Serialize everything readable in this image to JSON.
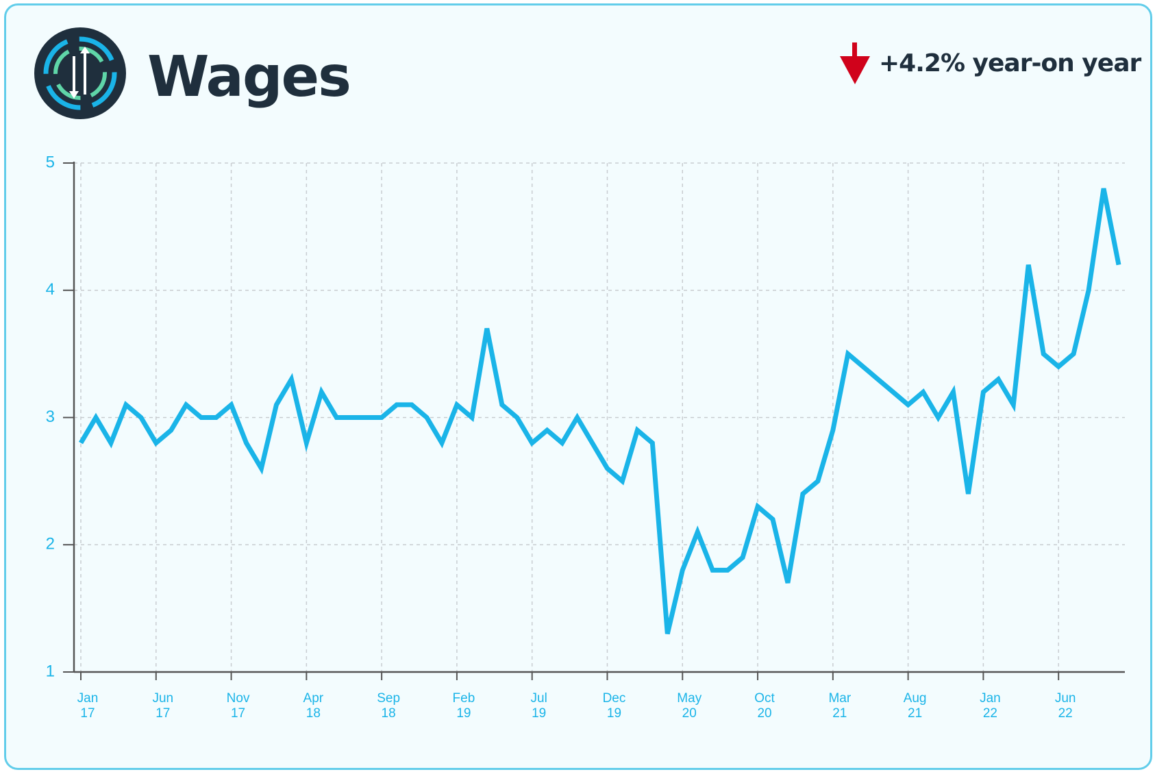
{
  "chart_data": {
    "type": "line",
    "title": "Wages",
    "annotation": "+4.2% year-on year",
    "categories": [
      "Jan 17",
      null,
      null,
      null,
      null,
      "Jun 17",
      null,
      null,
      null,
      null,
      "Nov 17",
      null,
      null,
      null,
      null,
      "Apr 18",
      null,
      null,
      null,
      null,
      "Sep 18",
      null,
      null,
      null,
      null,
      "Feb 19",
      null,
      null,
      null,
      null,
      "Jul 19",
      null,
      null,
      null,
      null,
      "Dec 19",
      null,
      null,
      null,
      null,
      "May 20",
      null,
      null,
      null,
      null,
      "Oct 20",
      null,
      null,
      null,
      null,
      "Mar 21",
      null,
      null,
      null,
      null,
      "Aug 21",
      null,
      null,
      null,
      null,
      "Jan 22",
      null,
      null,
      null,
      null,
      "Jun 22",
      null,
      null,
      null,
      null
    ],
    "series": [
      {
        "name": "Wages",
        "color": "#1ab4e8",
        "values": [
          2.8,
          3.0,
          2.8,
          3.1,
          3.0,
          2.8,
          2.9,
          3.1,
          3.0,
          3.0,
          3.1,
          2.8,
          2.6,
          3.1,
          3.3,
          2.8,
          3.2,
          3.0,
          3.0,
          3.0,
          3.0,
          3.1,
          3.1,
          3.0,
          2.8,
          3.1,
          3.0,
          3.7,
          3.1,
          3.0,
          2.8,
          2.9,
          2.8,
          3.0,
          2.8,
          2.6,
          2.5,
          2.9,
          2.8,
          1.3,
          1.8,
          2.1,
          1.8,
          1.8,
          1.9,
          2.3,
          2.2,
          1.7,
          2.4,
          2.5,
          2.9,
          3.5,
          3.4,
          3.3,
          3.2,
          3.1,
          3.2,
          3.0,
          3.2,
          2.4,
          3.2,
          3.3,
          3.1,
          4.2,
          3.5,
          3.4,
          3.5,
          4.0,
          4.8,
          4.2
        ]
      }
    ],
    "ylim": [
      1,
      5
    ],
    "yticks": [
      1,
      2,
      3,
      4,
      5
    ],
    "grid": true
  }
}
